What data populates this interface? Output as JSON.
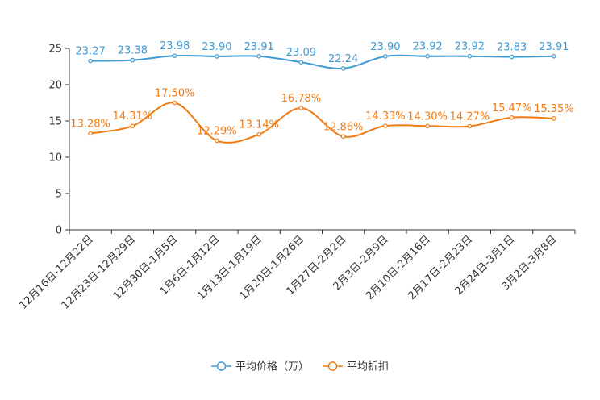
{
  "chart_data": {
    "type": "line",
    "title": "",
    "xlabel": "",
    "ylabel": "",
    "ylim": [
      0,
      25
    ],
    "yticks": [
      0,
      5,
      10,
      15,
      20,
      25
    ],
    "grid": false,
    "legend_position": "bottom-center",
    "categories": [
      "12月16日-12月22日",
      "12月23日-12月29日",
      "12月30日-1月5日",
      "1月6日-1月12日",
      "1月13日-1月19日",
      "1月20日-1月26日",
      "1月27日-2月2日",
      "2月3日-2月9日",
      "2月10日-2月16日",
      "2月17日-2月23日",
      "2月24日-3月1日",
      "3月2日-3月8日"
    ],
    "series": [
      {
        "name": "平均价格（万）",
        "color": "#3e9bd3",
        "values": [
          23.27,
          23.38,
          23.98,
          23.9,
          23.91,
          23.09,
          22.24,
          23.9,
          23.92,
          23.92,
          23.83,
          23.91
        ],
        "labels": [
          "23.27",
          "23.38",
          "23.98",
          "23.90",
          "23.91",
          "23.09",
          "22.24",
          "23.90",
          "23.92",
          "23.92",
          "23.83",
          "23.91"
        ]
      },
      {
        "name": "平均折扣",
        "color": "#f07b14",
        "values": [
          13.28,
          14.31,
          17.5,
          12.29,
          13.14,
          16.78,
          12.86,
          14.33,
          14.3,
          14.27,
          15.47,
          15.35
        ],
        "labels": [
          "13.28%",
          "14.31%",
          "17.50%",
          "12.29%",
          "13.14%",
          "16.78%",
          "12.86%",
          "14.33%",
          "14.30%",
          "14.27%",
          "15.47%",
          "15.35%"
        ]
      }
    ]
  }
}
